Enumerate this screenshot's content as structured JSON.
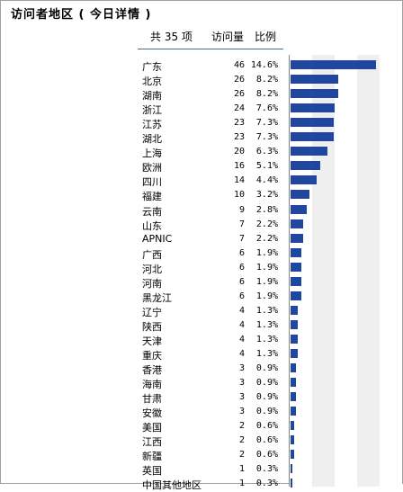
{
  "title": "访问者地区 ( 今日详情 )",
  "header": {
    "total": "共 35 项",
    "visits": "访问量",
    "ratio": "比例"
  },
  "colors": {
    "bar": "#1f47a0",
    "band": "#efefef",
    "rule": "#4a6a9a"
  },
  "max_pct": 14.6,
  "rows": [
    {
      "name": "广东",
      "count": "46",
      "pct": "14.6%",
      "value": 14.6
    },
    {
      "name": "北京",
      "count": "26",
      "pct": "8.2%",
      "value": 8.2
    },
    {
      "name": "湖南",
      "count": "26",
      "pct": "8.2%",
      "value": 8.2
    },
    {
      "name": "浙江",
      "count": "24",
      "pct": "7.6%",
      "value": 7.6
    },
    {
      "name": "江苏",
      "count": "23",
      "pct": "7.3%",
      "value": 7.3
    },
    {
      "name": "湖北",
      "count": "23",
      "pct": "7.3%",
      "value": 7.3
    },
    {
      "name": "上海",
      "count": "20",
      "pct": "6.3%",
      "value": 6.3
    },
    {
      "name": "欧洲",
      "count": "16",
      "pct": "5.1%",
      "value": 5.1
    },
    {
      "name": "四川",
      "count": "14",
      "pct": "4.4%",
      "value": 4.4
    },
    {
      "name": "福建",
      "count": "10",
      "pct": "3.2%",
      "value": 3.2
    },
    {
      "name": "云南",
      "count": "9",
      "pct": "2.8%",
      "value": 2.8
    },
    {
      "name": "山东",
      "count": "7",
      "pct": "2.2%",
      "value": 2.2
    },
    {
      "name": "APNIC",
      "count": "7",
      "pct": "2.2%",
      "value": 2.2
    },
    {
      "name": "广西",
      "count": "6",
      "pct": "1.9%",
      "value": 1.9
    },
    {
      "name": "河北",
      "count": "6",
      "pct": "1.9%",
      "value": 1.9
    },
    {
      "name": "河南",
      "count": "6",
      "pct": "1.9%",
      "value": 1.9
    },
    {
      "name": "黑龙江",
      "count": "6",
      "pct": "1.9%",
      "value": 1.9
    },
    {
      "name": "辽宁",
      "count": "4",
      "pct": "1.3%",
      "value": 1.3
    },
    {
      "name": "陕西",
      "count": "4",
      "pct": "1.3%",
      "value": 1.3
    },
    {
      "name": "天津",
      "count": "4",
      "pct": "1.3%",
      "value": 1.3
    },
    {
      "name": "重庆",
      "count": "4",
      "pct": "1.3%",
      "value": 1.3
    },
    {
      "name": "香港",
      "count": "3",
      "pct": "0.9%",
      "value": 0.9
    },
    {
      "name": "海南",
      "count": "3",
      "pct": "0.9%",
      "value": 0.9
    },
    {
      "name": "甘肃",
      "count": "3",
      "pct": "0.9%",
      "value": 0.9
    },
    {
      "name": "安徽",
      "count": "3",
      "pct": "0.9%",
      "value": 0.9
    },
    {
      "name": "美国",
      "count": "2",
      "pct": "0.6%",
      "value": 0.6
    },
    {
      "name": "江西",
      "count": "2",
      "pct": "0.6%",
      "value": 0.6
    },
    {
      "name": "新疆",
      "count": "2",
      "pct": "0.6%",
      "value": 0.6
    },
    {
      "name": "英国",
      "count": "1",
      "pct": "0.3%",
      "value": 0.3
    },
    {
      "name": "中国其他地区",
      "count": "1",
      "pct": "0.3%",
      "value": 0.3
    }
  ]
}
